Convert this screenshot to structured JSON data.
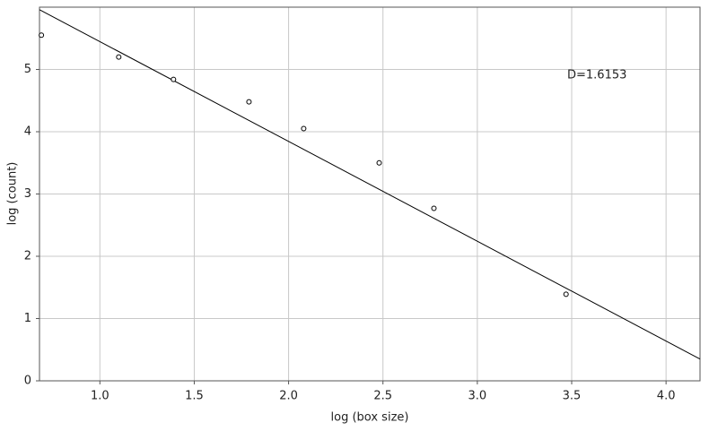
{
  "chart_data": {
    "type": "scatter",
    "x_label": "log (box size)",
    "y_label": "log (count)",
    "annotation": "D=1.6153",
    "x": [
      0.69,
      1.1,
      1.39,
      1.79,
      2.08,
      2.48,
      2.77,
      3.47
    ],
    "values": [
      5.55,
      5.2,
      4.84,
      4.48,
      4.05,
      3.5,
      2.77,
      1.39
    ],
    "color": "#000000",
    "fit_line": {
      "x": [
        0.68,
        4.18
      ],
      "y": [
        5.96,
        0.35
      ],
      "color": "#000000"
    },
    "xlim": [
      0.68,
      4.18
    ],
    "ylim": [
      0,
      6.0
    ],
    "xticks": [
      {
        "value": 1,
        "label": "1.0"
      },
      1.5,
      {
        "value": 2,
        "label": "2.0"
      },
      2.5,
      {
        "value": 3,
        "label": "3.0"
      },
      3.5,
      {
        "value": 4,
        "label": "4.0"
      }
    ],
    "yticks": [
      0,
      1,
      2,
      3,
      4,
      5
    ],
    "grid": true
  }
}
